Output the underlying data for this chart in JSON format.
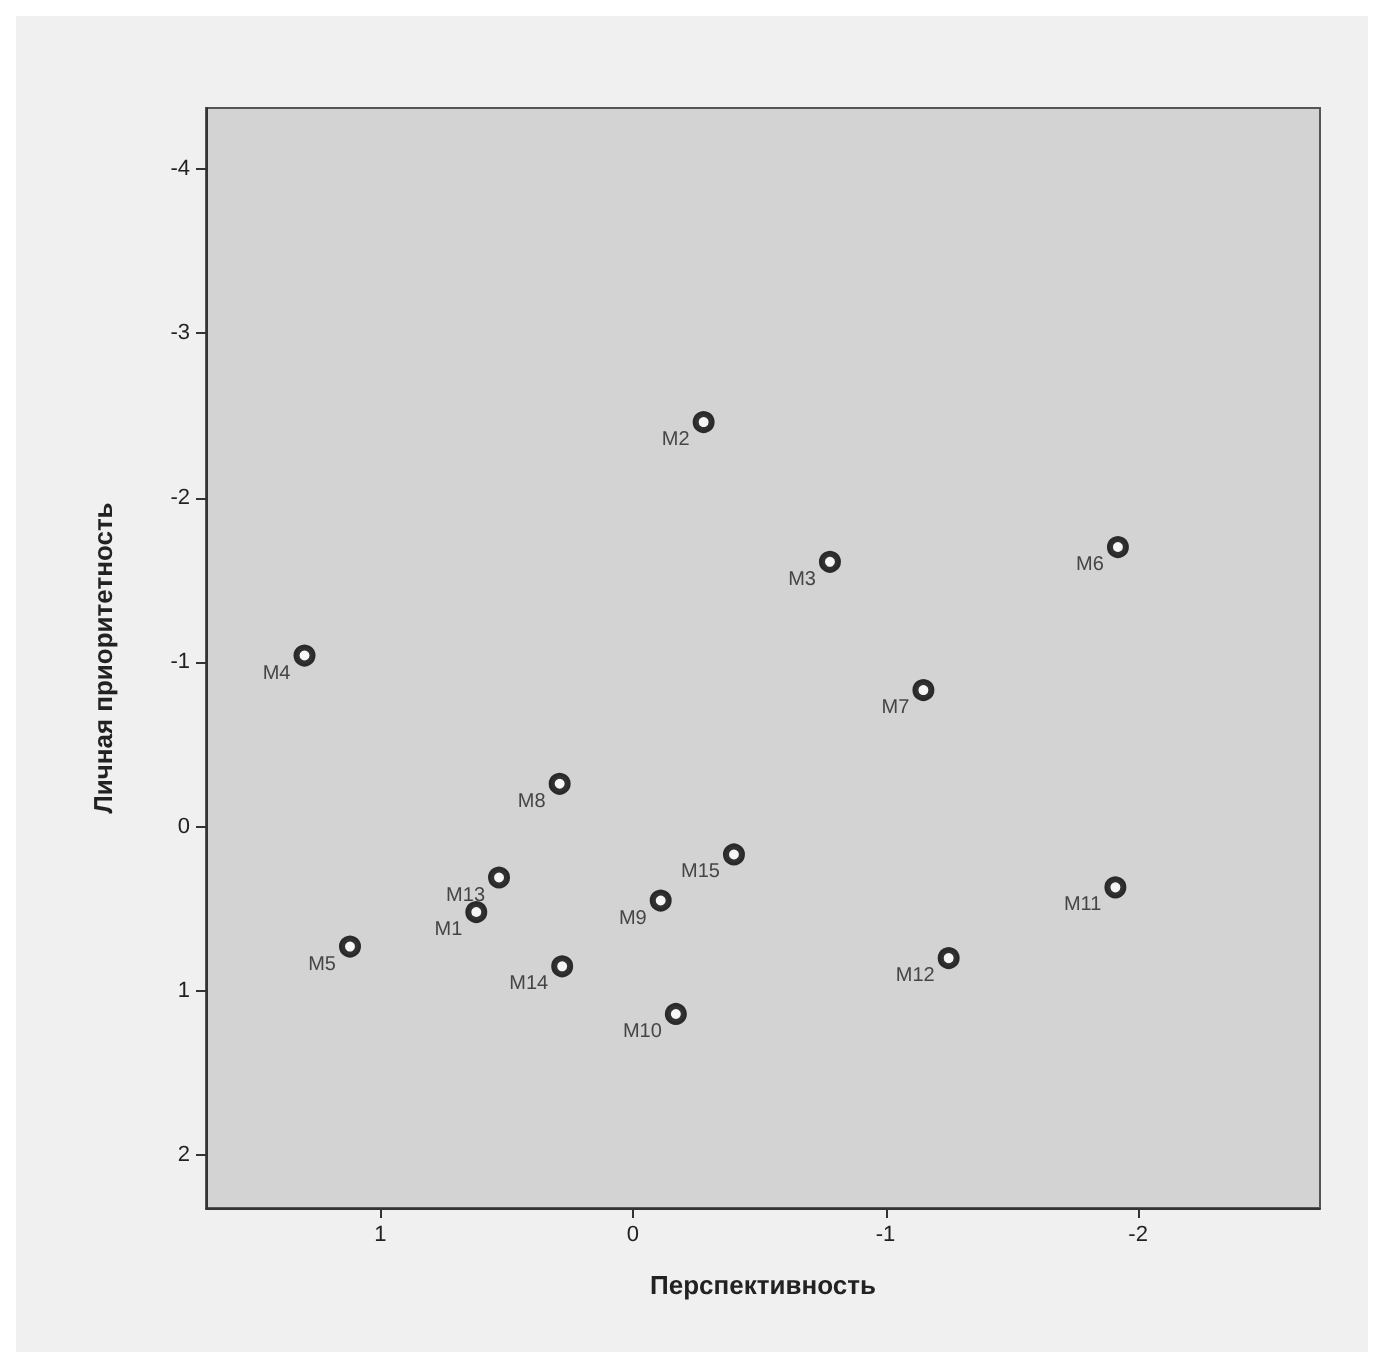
{
  "chart_data": {
    "type": "scatter",
    "xlabel": "Перспективность",
    "ylabel": "Личная приоритетность",
    "x": [
      0.62,
      -0.28,
      -0.78,
      1.3,
      1.12,
      -1.92,
      -1.15,
      0.29,
      -0.11,
      -0.17,
      -1.91,
      -1.25,
      0.53,
      0.28,
      -0.4
    ],
    "values": [
      0.52,
      -2.46,
      -1.61,
      -1.04,
      0.73,
      -1.7,
      -0.83,
      -0.26,
      0.45,
      1.14,
      0.37,
      0.8,
      0.31,
      0.85,
      0.17
    ],
    "color": "#000000",
    "marker": "circle",
    "annotations": [
      {
        "text": "M1",
        "x": 0.62,
        "y": 0.52
      },
      {
        "text": "M2",
        "x": -0.28,
        "y": -2.46
      },
      {
        "text": "M3",
        "x": -0.78,
        "y": -1.61
      },
      {
        "text": "M4",
        "x": 1.3,
        "y": -1.04
      },
      {
        "text": "M5",
        "x": 1.12,
        "y": 0.73
      },
      {
        "text": "M6",
        "x": -1.92,
        "y": -1.7
      },
      {
        "text": "M7",
        "x": -1.15,
        "y": -0.83
      },
      {
        "text": "M8",
        "x": 0.29,
        "y": -0.26
      },
      {
        "text": "M9",
        "x": -0.11,
        "y": 0.45
      },
      {
        "text": "M10",
        "x": -0.17,
        "y": 1.14
      },
      {
        "text": "M11",
        "x": -1.91,
        "y": 0.37
      },
      {
        "text": "M12",
        "x": -1.25,
        "y": 0.8
      },
      {
        "text": "M13",
        "x": 0.53,
        "y": 0.31
      },
      {
        "text": "M14",
        "x": 0.28,
        "y": 0.85
      },
      {
        "text": "M15",
        "x": -0.4,
        "y": 0.17
      }
    ],
    "xlim": [
      1.69,
      -2.72
    ],
    "xticks": [
      1,
      0,
      -1,
      -2
    ],
    "ylim": [
      2.32,
      -4.37
    ],
    "yticks": [
      -4,
      -3,
      -2,
      -1,
      0,
      1,
      2
    ],
    "grid": false
  }
}
